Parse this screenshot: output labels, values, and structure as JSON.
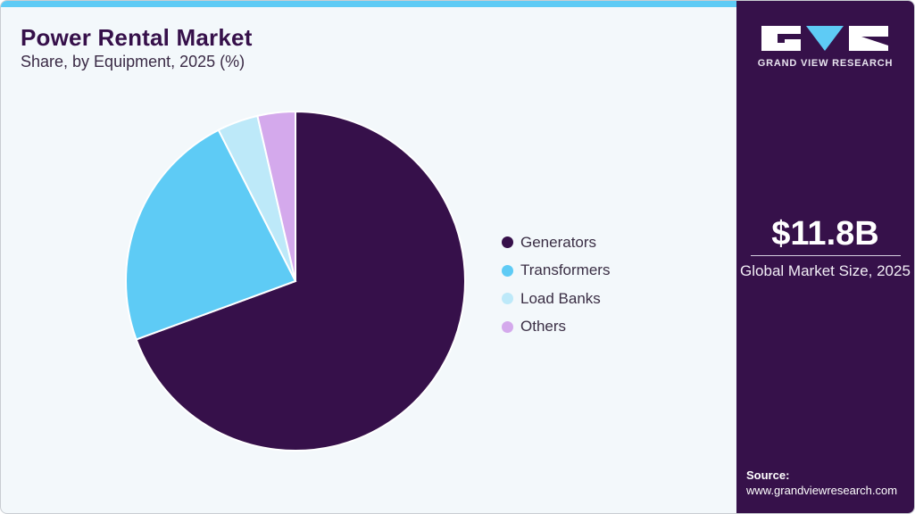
{
  "header": {
    "title": "Power Rental Market",
    "subtitle": "Share, by Equipment, 2025 (%)"
  },
  "colors": {
    "accent_bar": "#5ecbf5",
    "panel_bg": "#36114a",
    "chart_bg": "#f3f8fb"
  },
  "chart_data": {
    "type": "pie",
    "title": "Power Rental Market",
    "subtitle": "Share, by Equipment, 2025 (%)",
    "categories": [
      "Generators",
      "Transformers",
      "Load Banks",
      "Others"
    ],
    "values": [
      69.4,
      23.1,
      3.9,
      3.6
    ],
    "colors": [
      "#36104a",
      "#5ecbf5",
      "#bde9f9",
      "#d4a9ec"
    ],
    "start_angle": "12 o'clock, clockwise",
    "legend_position": "right",
    "data_labels": false
  },
  "legend": {
    "items": [
      {
        "label": "Generators",
        "color": "#36104a"
      },
      {
        "label": "Transformers",
        "color": "#5ecbf5"
      },
      {
        "label": "Load Banks",
        "color": "#bde9f9"
      },
      {
        "label": "Others",
        "color": "#d4a9ec"
      }
    ]
  },
  "sidebar": {
    "logo_text": "GRAND VIEW RESEARCH",
    "market_value": "$11.8B",
    "market_label": "Global Market Size, 2025",
    "source_label": "Source:",
    "source_url": "www.grandviewresearch.com"
  }
}
